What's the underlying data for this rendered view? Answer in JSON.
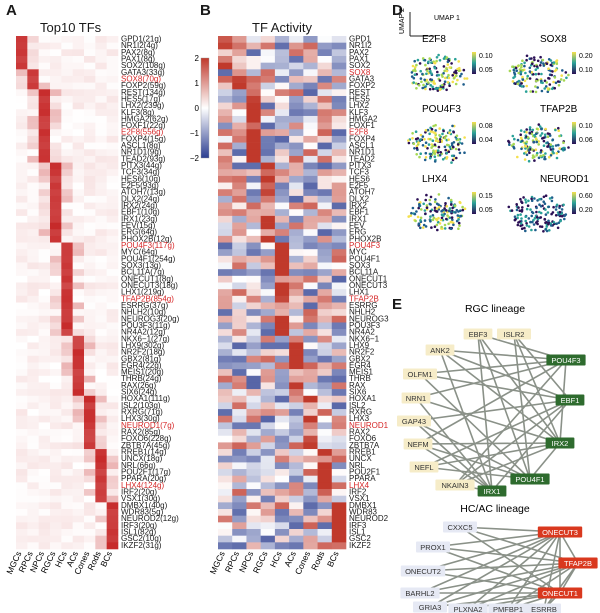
{
  "panels": {
    "a": {
      "letter": "A",
      "title": "Top10 TFs"
    },
    "b": {
      "letter": "B",
      "title": "TF Activity"
    },
    "d": {
      "letter": "D"
    },
    "e": {
      "letter": "E"
    }
  },
  "chart_data": [
    {
      "type": "heatmap",
      "id": "top10",
      "title": "Top10 TFs",
      "columns": [
        "MGCs",
        "RPCs",
        "NPCs",
        "RGCs",
        "HCs",
        "ACs",
        "Cones",
        "Rods",
        "BCs"
      ],
      "rows": [
        "GPD1(21g)",
        "NR1I2(4g)",
        "PAX2(8g)",
        "PAX1(8g)",
        "SOX2(108g)",
        "GATA3(33g)",
        "SOX8(70g)",
        "FOXP2(59g)",
        "REST(134g)",
        "HES5(17g)",
        "LHX2(239g)",
        "KLF3(8g)",
        "HMGA2(62g)",
        "FOXF1(22g)",
        "E2F8(556g)",
        "FOXP4(15g)",
        "ASCL1(8g)",
        "NR1D1(9g)",
        "TEAD2(93g)",
        "PITX3(44g)",
        "TCF3(34g)",
        "HES6(10g)",
        "E2F5(93g)",
        "ATOH7(13g)",
        "DLX2(24g)",
        "IRX2(24g)",
        "EBF1(10g)",
        "IRX1(23g)",
        "FEV(15g)",
        "ERG(64g)",
        "PHOX2B(12g)",
        "POU4F3(117g)",
        "MYC(64g)",
        "POU4F1(254g)",
        "SOX3(13g)",
        "BCL11A(7g)",
        "ONECUT1(8g)",
        "ONECUT3(18g)",
        "LHX1(219g)",
        "TFAP2B(854g)",
        "ESRRG(37g)",
        "NHLH2(10g)",
        "NEUROG3(20g)",
        "POU3F3(11g)",
        "NR4A2(12g)",
        "NKX6−1(27g)",
        "LHX9(302g)",
        "NR2F2(18g)",
        "GBX2(81g)",
        "EGR4(22g)",
        "MEIS1(20g)",
        "THRB(24g)",
        "RAX(26g)",
        "SIX6(24g)",
        "HOXA1(111g)",
        "ISL2(103g)",
        "RXRG(71g)",
        "LHX3(30g)",
        "NEUROD1(7g)",
        "RAX2(85g)",
        "FOXO6(228g)",
        "ZBTB7A(45g)",
        "RREB1(14g)",
        "UNCX(18g)",
        "NRL(66g)",
        "POU2F1(17g)",
        "PPARA(20g)",
        "LHX4(124g)",
        "IRF2(20g)",
        "VSX1(30g)",
        "DMBX1(40g)",
        "WDR83(5g)",
        "NEUROD2(12g)",
        "IRF3(20g)",
        "ISL1(82g)",
        "GSC2(10g)",
        "IKZF2(31g)"
      ],
      "highlighted_rows": [
        "SOX8(70g)",
        "E2F8(556g)",
        "POU4F3(117g)",
        "TFAP2B(854g)",
        "NEUROD1(7g)",
        "LHX4(124g)"
      ],
      "groups": [
        5,
        3,
        11,
        12,
        14,
        9,
        8,
        8,
        7
      ],
      "colorscale": [
        "#ffffff",
        "#c62828"
      ]
    },
    {
      "type": "heatmap",
      "id": "activity",
      "title": "TF Activity",
      "columns": [
        "MGCs",
        "RPCs",
        "NPCs",
        "RGCs",
        "HCs",
        "ACs",
        "Cones",
        "Rods",
        "BCs"
      ],
      "rows": [
        "GPD1",
        "NR1I2",
        "PAX2",
        "PAX1",
        "SOX2",
        "SOX8",
        "GATA3",
        "FOXP2",
        "REST",
        "HES5",
        "LHX2",
        "KLF3",
        "HMGA2",
        "FOXF1",
        "E2F8",
        "FOXP4",
        "ASCL1",
        "NR1D1",
        "TEAD2",
        "PITX3",
        "TCF3",
        "HES6",
        "E2F5",
        "ATOH7",
        "DLX2",
        "IRX2",
        "EBF1",
        "IRX1",
        "FEV",
        "ERG",
        "PHOX2B",
        "POU4F3",
        "MYC",
        "POU4F1",
        "SOX3",
        "BCL11A",
        "ONECUT1",
        "ONECUT3",
        "LHX1",
        "TFAP2B",
        "ESRRG",
        "NHLH2",
        "NEUROG3",
        "POU3F3",
        "NR4A2",
        "NKX6−1",
        "LHX9",
        "NR2F2",
        "GBX2",
        "EGR4",
        "MEIS1",
        "THRB",
        "RAX",
        "SIX6",
        "HOXA1",
        "ISL2",
        "RXRG",
        "LHX3",
        "NEUROD1",
        "RAX2",
        "FOXO6",
        "ZBTB7A",
        "RREB1",
        "UNCX",
        "NRL",
        "POU2F1",
        "PPARA",
        "LHX4",
        "IRF2",
        "VSX1",
        "DMBX1",
        "WDR83",
        "NEUROD2",
        "IRF3",
        "ISL1",
        "GSC2",
        "IKZF2"
      ],
      "highlighted_rows": [
        "SOX8",
        "E2F8",
        "POU4F3",
        "TFAP2B",
        "NEUROD1",
        "LHX4"
      ],
      "colorbar_ticks": [
        "2",
        "1",
        "0",
        "−1",
        "−2"
      ],
      "colorscale": [
        "#2c3e91",
        "#ffffff",
        "#c0392b"
      ]
    },
    {
      "type": "scatter",
      "id": "umap",
      "axis_labels": {
        "x": "UMAP 1",
        "y": "UMAP 2"
      },
      "subplots": [
        {
          "title": "E2F8",
          "ticks": [
            "0.10",
            "0.05"
          ]
        },
        {
          "title": "SOX8",
          "ticks": [
            "0.20",
            "0.10"
          ]
        },
        {
          "title": "POU4F3",
          "ticks": [
            "0.08",
            "0.04"
          ]
        },
        {
          "title": "TFAP2B",
          "ticks": [
            "0.10",
            "0.06"
          ]
        },
        {
          "title": "LHX4",
          "ticks": [
            "0.15",
            "0.05"
          ]
        },
        {
          "title": "NEUROD1",
          "ticks": [
            "0.60",
            "0.20"
          ]
        }
      ]
    }
  ],
  "networks": {
    "rgc": {
      "title": "RGC lineage",
      "nodes": [
        {
          "id": "EBF3",
          "hub": false
        },
        {
          "id": "ISLR2",
          "hub": false
        },
        {
          "id": "ANK2",
          "hub": false
        },
        {
          "id": "OLFM1",
          "hub": false
        },
        {
          "id": "NRN1",
          "hub": false
        },
        {
          "id": "GAP43",
          "hub": false
        },
        {
          "id": "NEFM",
          "hub": false
        },
        {
          "id": "NEFL",
          "hub": false
        },
        {
          "id": "NKAIN3",
          "hub": false
        },
        {
          "id": "POU4F3",
          "hub": true
        },
        {
          "id": "EBF1",
          "hub": true
        },
        {
          "id": "IRX2",
          "hub": true
        },
        {
          "id": "POU4F1",
          "hub": true
        },
        {
          "id": "IRX1",
          "hub": true
        }
      ],
      "hub_color": "#2e6b2e",
      "target_color": "#f6ecc8"
    },
    "hcac": {
      "title": "HC/AC lineage",
      "nodes": [
        {
          "id": "CXXC5",
          "hub": false
        },
        {
          "id": "PROX1",
          "hub": false
        },
        {
          "id": "ONECUT2",
          "hub": false
        },
        {
          "id": "BARHL2",
          "hub": false
        },
        {
          "id": "GRIA3",
          "hub": false
        },
        {
          "id": "PLXNA2",
          "hub": false
        },
        {
          "id": "PMFBP1",
          "hub": false
        },
        {
          "id": "ESRRB",
          "hub": false
        },
        {
          "id": "ONECUT3",
          "hub": true
        },
        {
          "id": "TFAP2B",
          "hub": true
        },
        {
          "id": "ONECUT1",
          "hub": true
        }
      ],
      "hub_color": "#d9381e",
      "target_color": "#e6e9f4"
    }
  }
}
